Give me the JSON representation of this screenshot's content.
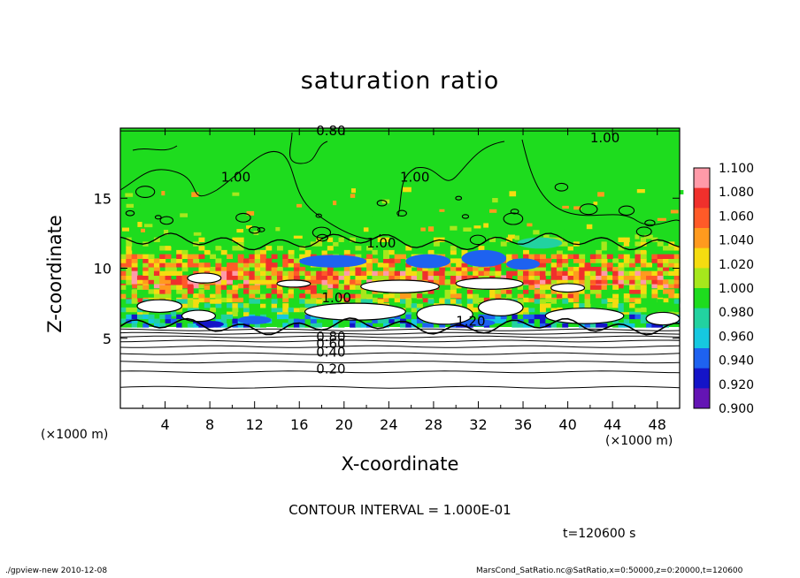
{
  "footer": {
    "left": "./gpview-new  2010-12-08",
    "right": "MarsCond_SatRatio.nc@SatRatio,x=0:50000,z=0:20000,t=120600"
  },
  "chart_data": {
    "type": "heatmap",
    "title": "saturation ratio",
    "xlabel": "X-coordinate",
    "ylabel": "Z-coordinate",
    "x_unit": "(×1000 m)",
    "y_unit": "(×1000 m)",
    "xlim": [
      0,
      50
    ],
    "ylim": [
      0,
      20
    ],
    "x_ticks": [
      "4",
      "8",
      "12",
      "16",
      "20",
      "24",
      "28",
      "32",
      "36",
      "40",
      "44",
      "48"
    ],
    "y_ticks": [
      "5",
      "10",
      "15"
    ],
    "contour_interval": "CONTOUR INTERVAL = 1.000E-01",
    "time": "t=120600 s",
    "colorbar": {
      "levels": [
        "1.100",
        "1.080",
        "1.060",
        "1.040",
        "1.020",
        "1.000",
        "0.980",
        "0.960",
        "0.940",
        "0.920",
        "0.900"
      ],
      "colors": [
        "#ff9aa8",
        "#f0302c",
        "#ff5a28",
        "#ff9a1e",
        "#f5dc10",
        "#a6e81c",
        "#1edc1e",
        "#22d2a0",
        "#16c8e0",
        "#1e62f0",
        "#1414c8",
        "#6414b4"
      ]
    },
    "contour_labels": [
      {
        "text": "0.80",
        "x": 17.5,
        "z": 19.8
      },
      {
        "text": "1.00",
        "x": 42.0,
        "z": 19.3
      },
      {
        "text": "1.00",
        "x": 9.0,
        "z": 16.5
      },
      {
        "text": "1.00",
        "x": 25.0,
        "z": 16.5
      },
      {
        "text": "1.00",
        "x": 22.0,
        "z": 11.8
      },
      {
        "text": "1.00",
        "x": 18.0,
        "z": 7.9
      },
      {
        "text": "1.20",
        "x": 30.0,
        "z": 6.2
      },
      {
        "text": "0.80",
        "x": 17.5,
        "z": 5.1
      },
      {
        "text": "0.60",
        "x": 17.5,
        "z": 4.6
      },
      {
        "text": "0.40",
        "x": 17.5,
        "z": 4.0
      },
      {
        "text": "0.20",
        "x": 17.5,
        "z": 2.8
      }
    ]
  }
}
